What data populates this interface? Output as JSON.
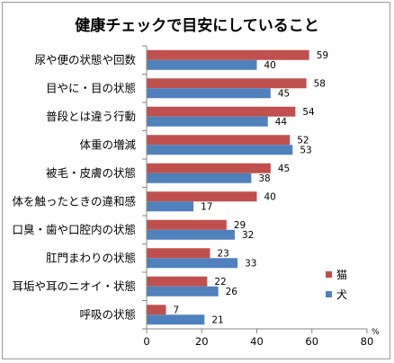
{
  "chart_data": {
    "type": "bar",
    "orientation": "horizontal",
    "title": "健康チェックで目安にしていること",
    "categories": [
      "尿や便の状態や回数",
      "目やに・目の状態",
      "普段とは違う行動",
      "体重の増減",
      "被毛・皮膚の状態",
      "体を触ったときの違和感",
      "口臭・歯や口腔内の状態",
      "肛門まわりの状態",
      "耳垢や耳のニオイ・状態",
      "呼吸の状態"
    ],
    "series": [
      {
        "name": "猫",
        "color": "#c0504d",
        "values": [
          59,
          58,
          54,
          52,
          45,
          40,
          29,
          23,
          22,
          7
        ]
      },
      {
        "name": "犬",
        "color": "#4f81bd",
        "values": [
          40,
          45,
          44,
          53,
          38,
          17,
          32,
          33,
          26,
          21
        ]
      }
    ],
    "xlim": [
      0,
      80
    ],
    "xticks": [
      0,
      20,
      40,
      60,
      80
    ],
    "unit": "%",
    "legend_position": "bottom-right",
    "grid": false
  }
}
